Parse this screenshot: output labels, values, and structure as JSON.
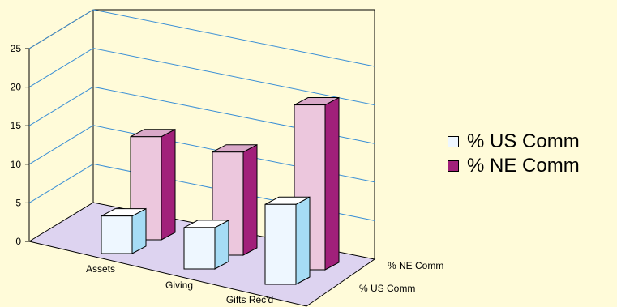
{
  "chart_data": {
    "type": "bar",
    "categories": [
      "Assets",
      "Giving",
      "Gifts Rec'd"
    ],
    "series": [
      {
        "name": "% US Comm",
        "values": [
          5.5,
          6,
          11
        ]
      },
      {
        "name": "% NE Comm",
        "values": [
          14,
          14,
          22
        ]
      }
    ],
    "depth_labels": [
      "% NE Comm",
      "% US Comm"
    ],
    "y_ticks": [
      "0",
      "5",
      "10",
      "15",
      "20",
      "25"
    ],
    "ylim": [
      0,
      25
    ],
    "grid": true,
    "legend_position": "right",
    "colors": {
      "background": "#fffbd9",
      "floor": "#ddd3f0",
      "gridline": "#3a8fd6",
      "us_front": "#eef7ff",
      "us_side": "#a6dcf5",
      "us_top": "#ffffff",
      "ne_front": "#ecc7dd",
      "ne_side": "#a1207a",
      "ne_top": "#d9a8c8"
    }
  }
}
